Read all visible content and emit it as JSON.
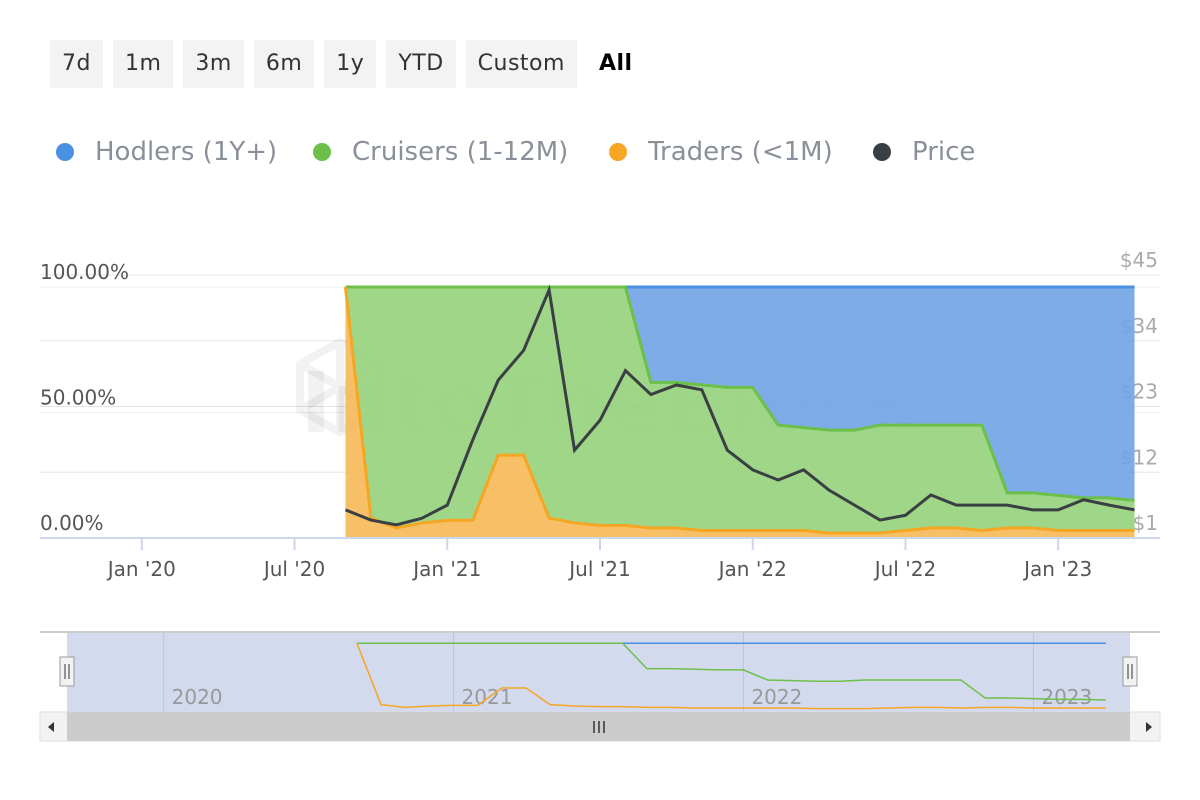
{
  "range_buttons": [
    "7d",
    "1m",
    "3m",
    "6m",
    "1y",
    "YTD",
    "Custom",
    "All"
  ],
  "selected_button": 7,
  "chart_data": {
    "type": "area",
    "stacked": true,
    "watermark": "IntoTheBlock",
    "x": [
      "2020-09",
      "2020-10",
      "2020-11",
      "2020-12",
      "2021-01",
      "2021-02",
      "2021-03",
      "2021-04",
      "2021-05",
      "2021-06",
      "2021-07",
      "2021-08",
      "2021-09",
      "2021-10",
      "2021-11",
      "2021-12",
      "2022-01",
      "2022-02",
      "2022-03",
      "2022-04",
      "2022-05",
      "2022-06",
      "2022-07",
      "2022-08",
      "2022-09",
      "2022-10",
      "2022-11",
      "2022-12",
      "2023-01",
      "2023-02",
      "2023-03",
      "2023-04"
    ],
    "xlim": [
      "2019-09",
      "2023-05"
    ],
    "xticks": [
      {
        "value": "2020-01",
        "label": "Jan '20"
      },
      {
        "value": "2020-07",
        "label": "Jul '20"
      },
      {
        "value": "2021-01",
        "label": "Jan '21"
      },
      {
        "value": "2021-07",
        "label": "Jul '21"
      },
      {
        "value": "2022-01",
        "label": "Jan '22"
      },
      {
        "value": "2022-07",
        "label": "Jul '22"
      },
      {
        "value": "2023-01",
        "label": "Jan '23"
      }
    ],
    "ylim": [
      0,
      104.8
    ],
    "yticks": [
      {
        "value": 0,
        "label": "0.00%"
      },
      {
        "value": 50,
        "label": "50.00%"
      },
      {
        "value": 100,
        "label": "100.00%"
      }
    ],
    "y2lim": [
      1,
      45
    ],
    "y2ticks": [
      {
        "value": 1,
        "label": "$1"
      },
      {
        "value": 12,
        "label": "$12"
      },
      {
        "value": 23,
        "label": "$23"
      },
      {
        "value": 34,
        "label": "$34"
      },
      {
        "value": 45,
        "label": "$45"
      }
    ],
    "grid": true,
    "series": [
      {
        "name": "Hodlers (1Y+)",
        "color": "#4a90e2",
        "fill": "#6fa3e4",
        "values": [
          0,
          0,
          0,
          0,
          0,
          0,
          0,
          0,
          0,
          0,
          0,
          0,
          38,
          38,
          39,
          40,
          40,
          55,
          56,
          57,
          57,
          55,
          55,
          55,
          55,
          55,
          82,
          82,
          83,
          84,
          84,
          85
        ]
      },
      {
        "name": "Cruisers (1-12M)",
        "color": "#6cc04a",
        "fill": "#96d27a",
        "values": [
          0,
          92,
          96,
          94,
          93,
          93,
          67,
          67,
          92,
          94,
          95,
          95,
          58,
          58,
          58,
          57,
          57,
          42,
          41,
          41,
          41,
          43,
          42,
          41,
          41,
          42,
          14,
          14,
          14,
          13,
          13,
          12
        ]
      },
      {
        "name": "Traders (<1M)",
        "color": "#f5a623",
        "fill": "#f7b955",
        "values": [
          100,
          8,
          4,
          6,
          7,
          7,
          33,
          33,
          8,
          6,
          5,
          5,
          4,
          4,
          3,
          3,
          3,
          3,
          3,
          2,
          2,
          2,
          3,
          4,
          4,
          3,
          4,
          4,
          3,
          3,
          3,
          3
        ]
      },
      {
        "name": "Price",
        "color": "#3a3f44",
        "type": "line",
        "axis": "y2",
        "values": [
          5.7,
          4,
          3.2,
          4.3,
          6.5,
          17.4,
          27.4,
          32.4,
          42.5,
          15.7,
          20.7,
          29,
          25,
          26.6,
          25.8,
          15.7,
          12.4,
          10.7,
          12.4,
          9,
          6.5,
          4,
          4.8,
          8.2,
          6.5,
          6.5,
          6.5,
          5.7,
          5.7,
          7.4,
          6.5,
          5.7
        ]
      }
    ],
    "navigator": {
      "xticks": [
        {
          "value": "2020-01",
          "label": "2020"
        },
        {
          "value": "2021-01",
          "label": "2021"
        },
        {
          "value": "2022-01",
          "label": "2022"
        },
        {
          "value": "2023-01",
          "label": "2023"
        }
      ]
    }
  }
}
